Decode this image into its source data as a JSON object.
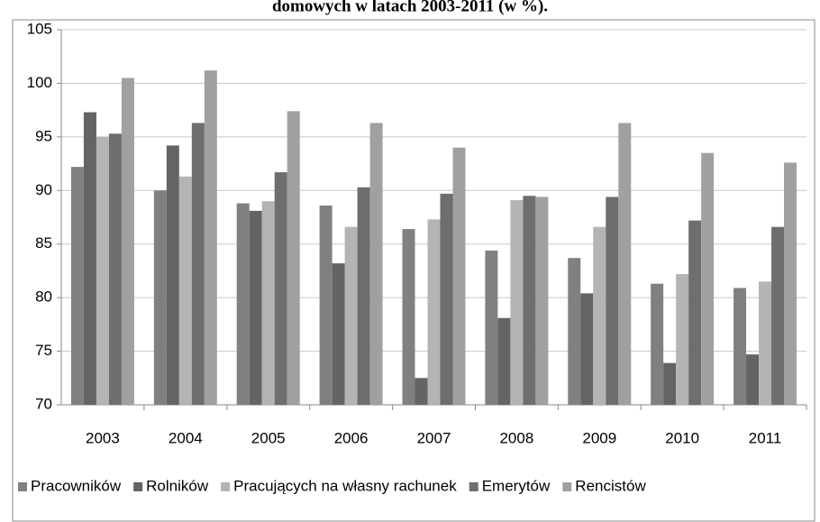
{
  "chart_data": {
    "type": "bar",
    "title": "domowych w latach 2003-2011 (w %).",
    "categories": [
      "2003",
      "2004",
      "2005",
      "2006",
      "2007",
      "2008",
      "2009",
      "2010",
      "2011"
    ],
    "series": [
      {
        "name": "Pracowników",
        "color": "#808080",
        "values": [
          92.2,
          90.0,
          88.8,
          88.6,
          86.4,
          84.4,
          83.7,
          81.3,
          80.9
        ]
      },
      {
        "name": "Rolników",
        "color": "#646464",
        "values": [
          97.3,
          94.2,
          88.1,
          83.2,
          72.5,
          78.1,
          80.4,
          73.9,
          74.7
        ]
      },
      {
        "name": "Pracujących na własny rachunek",
        "color": "#b4b4b4",
        "values": [
          95.0,
          91.3,
          89.0,
          86.6,
          87.3,
          89.1,
          86.6,
          82.2,
          81.5
        ]
      },
      {
        "name": "Emerytów",
        "color": "#6e6e6e",
        "values": [
          95.3,
          96.3,
          91.7,
          90.3,
          89.7,
          89.5,
          89.4,
          87.2,
          86.6
        ]
      },
      {
        "name": "Rencistów",
        "color": "#a0a0a0",
        "values": [
          100.5,
          101.2,
          97.4,
          96.3,
          94.0,
          89.4,
          96.3,
          93.5,
          92.6
        ]
      }
    ],
    "ylim": [
      70,
      105
    ],
    "yticks": [
      70,
      75,
      80,
      85,
      90,
      95,
      100,
      105
    ],
    "grid": true,
    "legend": "bottom"
  }
}
